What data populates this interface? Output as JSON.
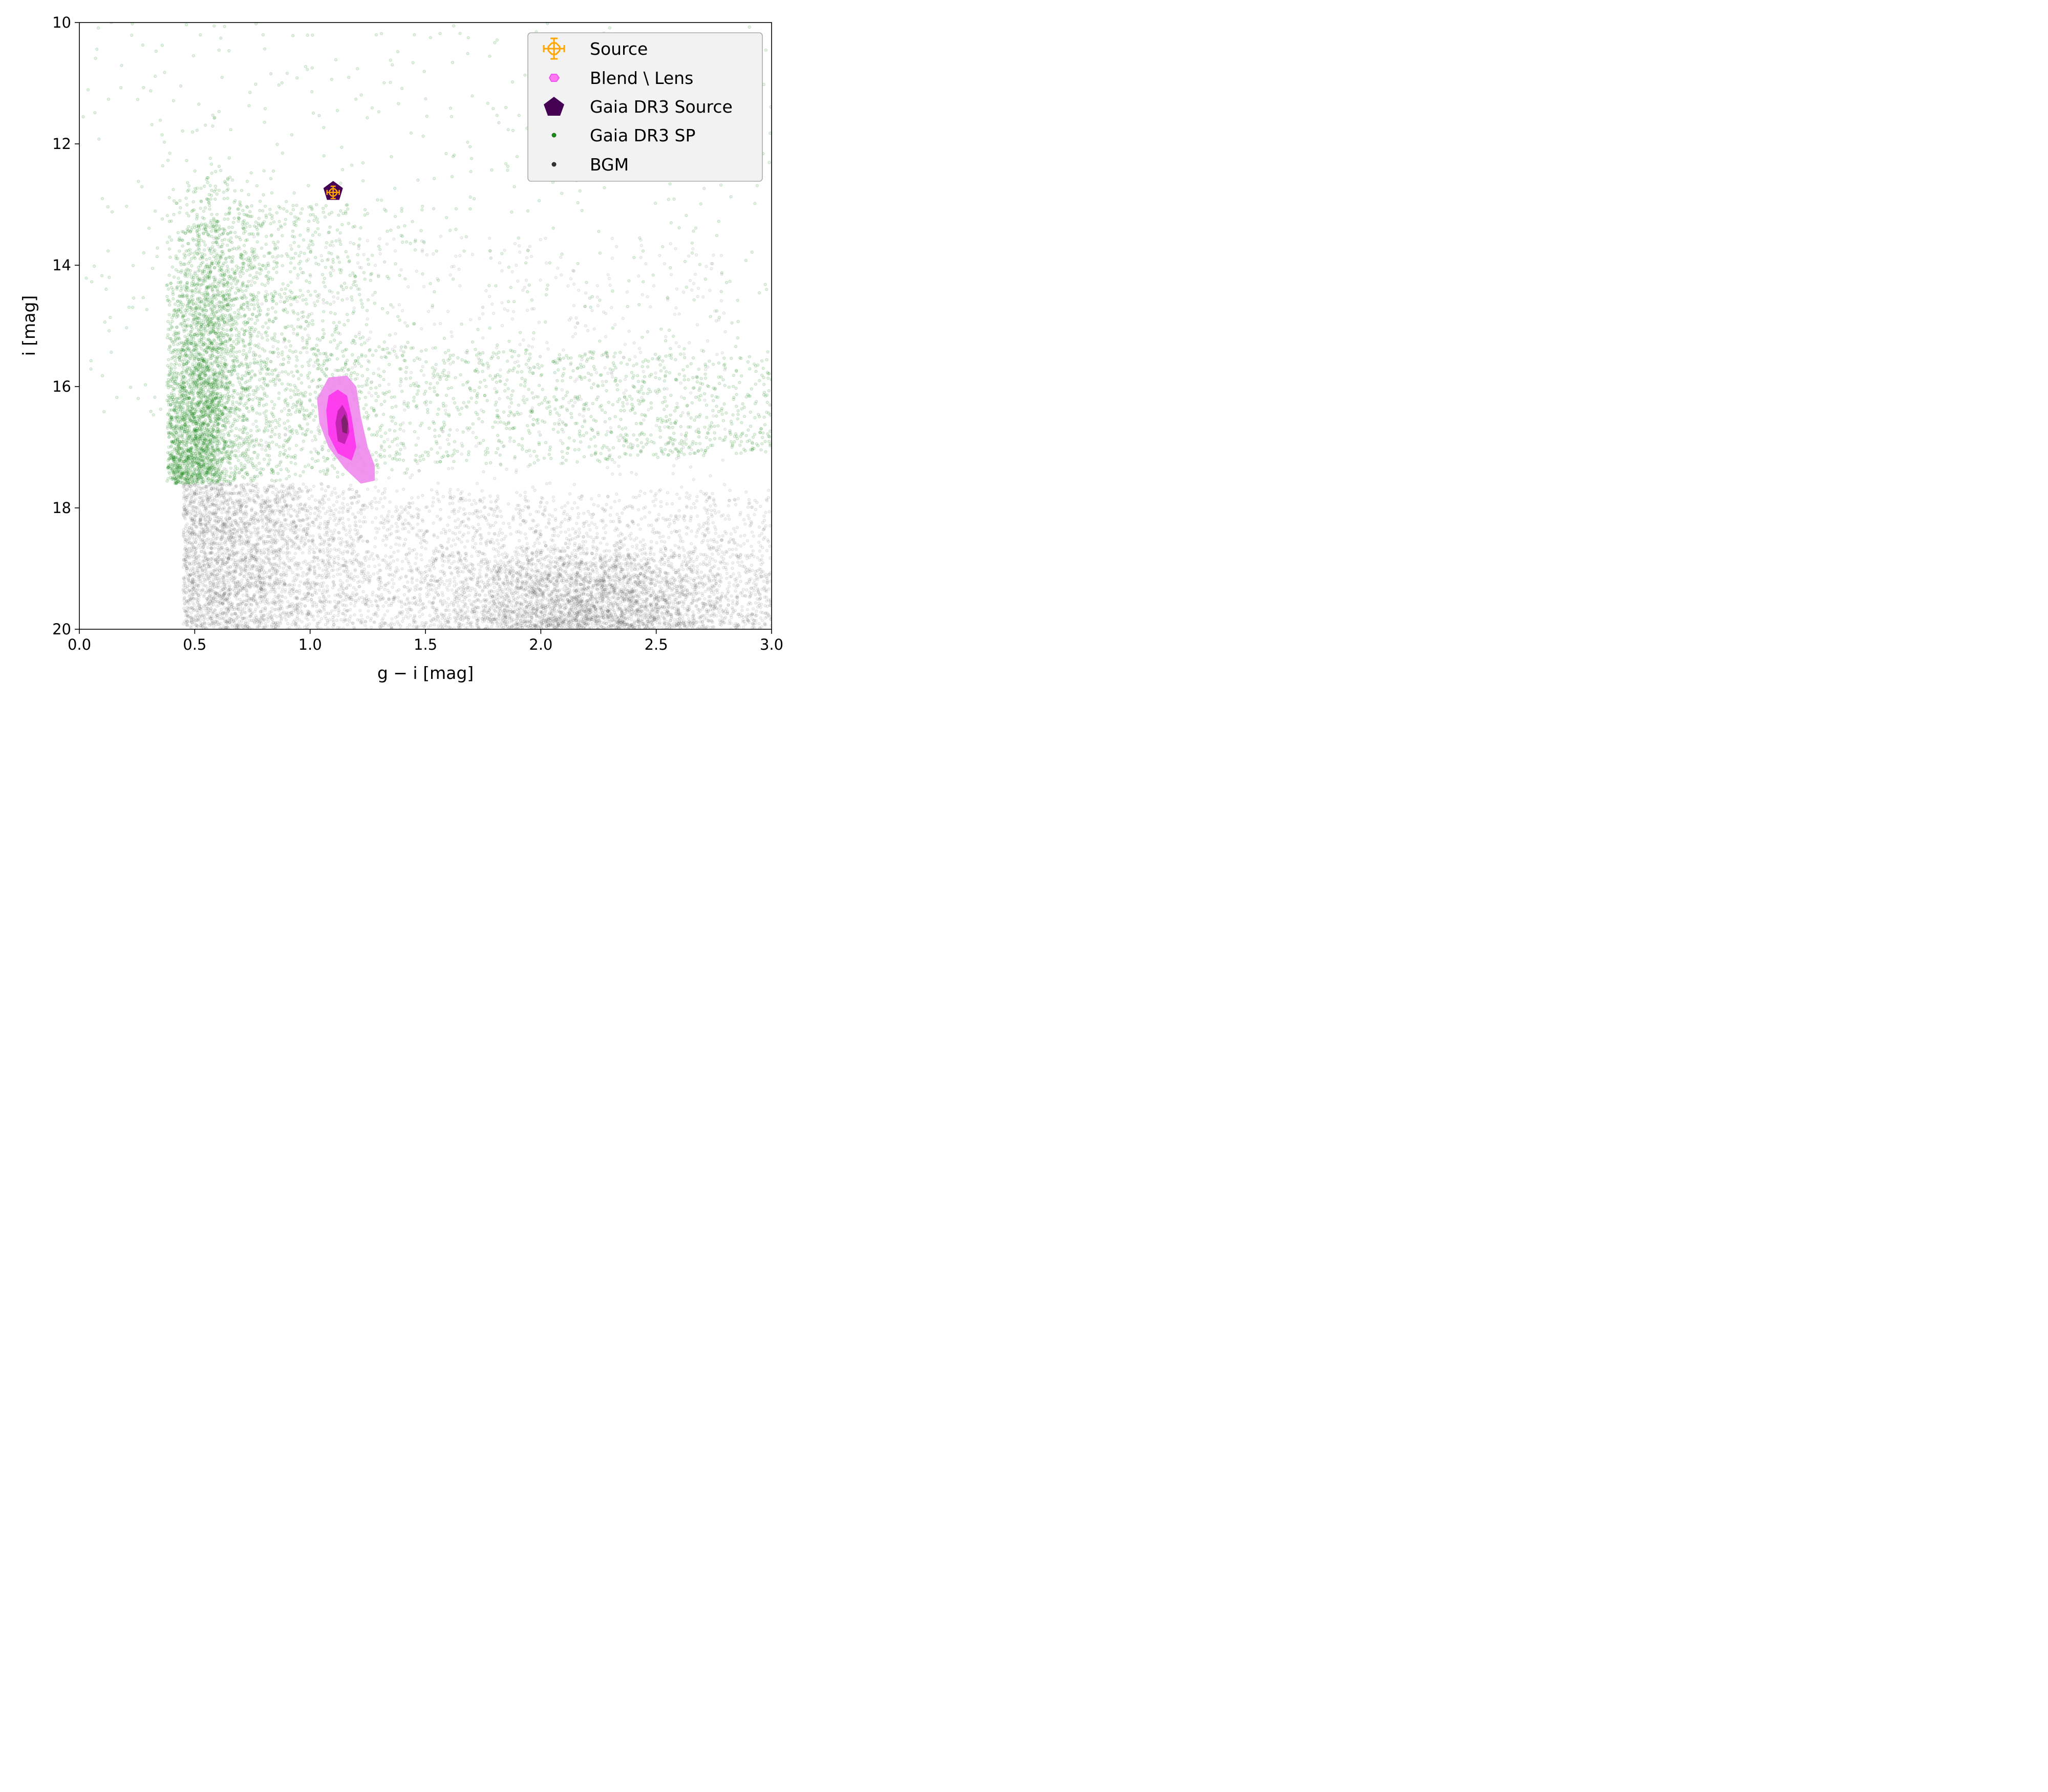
{
  "chart_data": {
    "type": "scatter",
    "xlabel": "g − i  [mag]",
    "ylabel": "i  [mag]",
    "xlim": [
      0.0,
      3.0
    ],
    "ylim": [
      20,
      10
    ],
    "y_inverted": true,
    "grid": false,
    "legend_placement": "top-right",
    "xticks": [
      "0.0",
      "0.5",
      "1.0",
      "1.5",
      "2.0",
      "2.5",
      "3.0"
    ],
    "yticks": [
      "10",
      "12",
      "14",
      "16",
      "18",
      "20"
    ],
    "xtick_values": [
      0.0,
      0.5,
      1.0,
      1.5,
      2.0,
      2.5,
      3.0
    ],
    "ytick_values": [
      10,
      12,
      14,
      16,
      18,
      20
    ],
    "series": [
      {
        "name": "Source",
        "marker": "orange-crosshair-errorbar",
        "color": "#FFA500",
        "points": [
          {
            "x": 1.1,
            "y": 12.8
          }
        ]
      },
      {
        "name": "Blend \\ Lens",
        "marker": "hexagon-contours",
        "color": "#EE66EE",
        "contours": [
          {
            "level": "outer",
            "color": "#EE88EE",
            "outline": [
              [
                1.08,
                15.85
              ],
              [
                1.16,
                15.82
              ],
              [
                1.2,
                16.0
              ],
              [
                1.22,
                16.5
              ],
              [
                1.25,
                17.0
              ],
              [
                1.28,
                17.3
              ],
              [
                1.28,
                17.55
              ],
              [
                1.22,
                17.6
              ],
              [
                1.15,
                17.35
              ],
              [
                1.08,
                17.0
              ],
              [
                1.04,
                16.6
              ],
              [
                1.03,
                16.2
              ]
            ]
          },
          {
            "level": "middle",
            "color": "#FF33EE",
            "outline": [
              [
                1.12,
                16.05
              ],
              [
                1.16,
                16.15
              ],
              [
                1.18,
                16.5
              ],
              [
                1.2,
                17.0
              ],
              [
                1.18,
                17.22
              ],
              [
                1.12,
                17.1
              ],
              [
                1.08,
                16.8
              ],
              [
                1.07,
                16.4
              ],
              [
                1.08,
                16.15
              ]
            ]
          },
          {
            "level": "inner",
            "color": "#BB22AA",
            "outline": [
              [
                1.14,
                16.3
              ],
              [
                1.16,
                16.45
              ],
              [
                1.17,
                16.75
              ],
              [
                1.15,
                16.95
              ],
              [
                1.12,
                16.9
              ],
              [
                1.11,
                16.6
              ],
              [
                1.12,
                16.4
              ]
            ]
          },
          {
            "level": "core",
            "color": "#772266",
            "outline": [
              [
                1.15,
                16.45
              ],
              [
                1.165,
                16.6
              ],
              [
                1.16,
                16.78
              ],
              [
                1.14,
                16.75
              ],
              [
                1.135,
                16.55
              ]
            ]
          }
        ]
      },
      {
        "name": "Gaia DR3 Source",
        "marker": "pentagon",
        "color": "#440154",
        "points": [
          {
            "x": 1.1,
            "y": 12.78
          }
        ]
      },
      {
        "name": "Gaia DR3 SP",
        "marker": "dot",
        "color": "#1a8a1a",
        "distribution": "dense giant branch and main sequence concentrated near g−i 0.4–0.8, i 12–17.6; diffuse red clump spreading to g−i 3.0 at i 15–17.2; sparse points to i 10",
        "count_drawn": 6000
      },
      {
        "name": "BGM",
        "marker": "dot",
        "color": "#333333",
        "distribution": "dense faint population i 17.5–20 across g−i 0.45–3.0, densest near g−i 0.5 and g−i 2.2 at i 19–20; sparser overlap with Gaia SP above i 17.5",
        "count_drawn": 9000
      }
    ]
  },
  "legend": {
    "items": [
      {
        "label": "Source",
        "key": "source"
      },
      {
        "label": "Blend \\ Lens",
        "key": "blend"
      },
      {
        "label": "Gaia DR3 Source",
        "key": "gaia_source"
      },
      {
        "label": "Gaia DR3 SP",
        "key": "gaia_sp"
      },
      {
        "label": "BGM",
        "key": "bgm"
      }
    ]
  },
  "colors": {
    "source": "#FFA500",
    "blend_fill": "#FF77EE",
    "blend_edge": "#EE66EE",
    "gaia_source": "#440154",
    "gaia_sp": "#1a8a1a",
    "bgm": "#333333",
    "legend_bg": "#F2F2F2",
    "legend_border": "#AAAAAA"
  }
}
